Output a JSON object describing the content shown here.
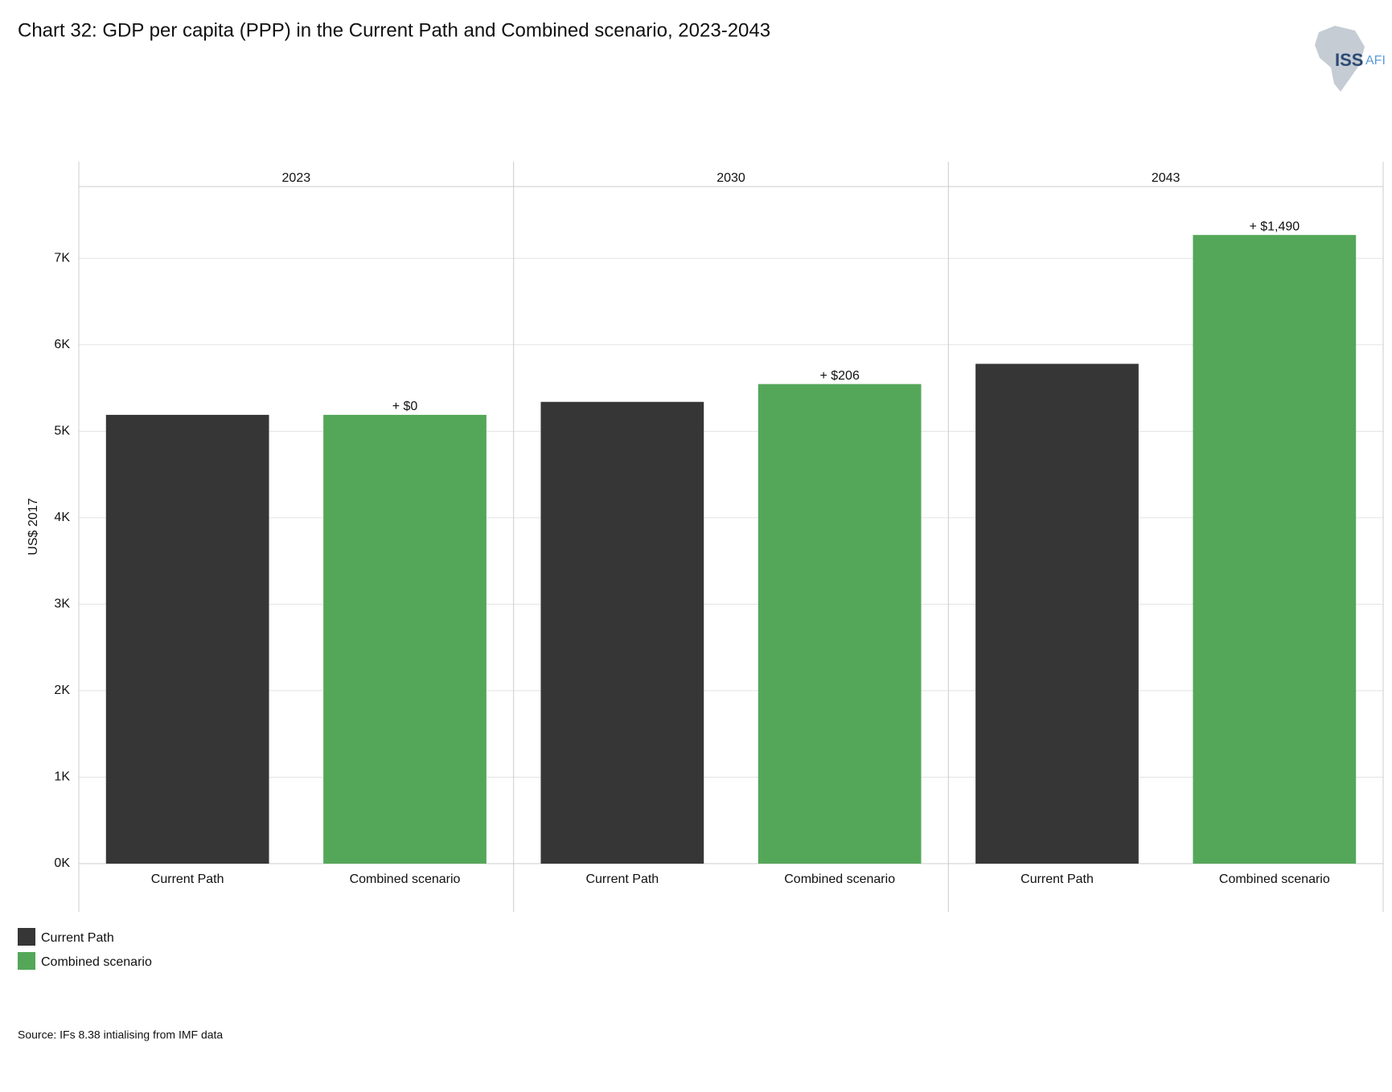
{
  "chart_data": {
    "type": "bar",
    "title": "Chart 32: GDP per capita (PPP) in the Current Path and Combined scenario, 2023-2043",
    "y_label": "US$ 2017",
    "categories": [
      "2023",
      "2030",
      "2043"
    ],
    "series": [
      {
        "name": "Current Path",
        "color": "#363636",
        "values": [
          5190,
          5340,
          5780
        ]
      },
      {
        "name": "Combined scenario",
        "color": "#54a759",
        "values": [
          5190,
          5546,
          7270
        ]
      }
    ],
    "annotations": [
      "+ $0",
      "+ $206",
      "+ $1,490"
    ],
    "ylim": [
      0,
      7830
    ],
    "yticks": [
      {
        "value": 0,
        "label": "0K"
      },
      {
        "value": 1000,
        "label": "1K"
      },
      {
        "value": 2000,
        "label": "2K"
      },
      {
        "value": 3000,
        "label": "3K"
      },
      {
        "value": 4000,
        "label": "4K"
      },
      {
        "value": 5000,
        "label": "5K"
      },
      {
        "value": 6000,
        "label": "6K"
      },
      {
        "value": 7000,
        "label": "7K"
      }
    ],
    "grid": true,
    "legend": "bottom-left",
    "source": "Source: IFs 8.38 intialising from IMF data",
    "logo": [
      "ISS",
      "AFI"
    ]
  }
}
